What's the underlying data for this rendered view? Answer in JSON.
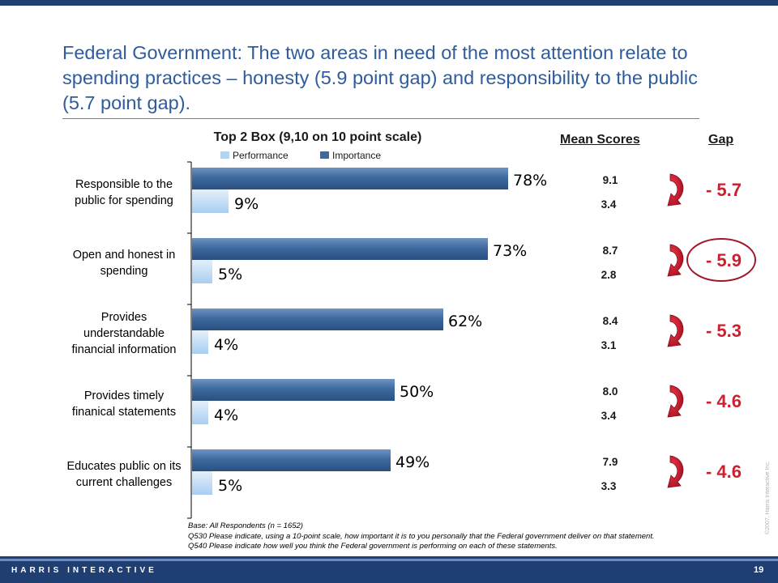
{
  "slide": {
    "title": "Federal Government: The two areas in need of the most attention relate to spending practices – honesty (5.9 point gap) and responsibility to the public (5.7 point gap).",
    "brand": "HARRIS INTERACTIVE",
    "page_number": "19",
    "side_note": "©2007, Harris Interactive Inc.",
    "footnotes": [
      "Base: All Respondents (n = 1652)",
      "Q530 Please indicate, using a 10-point scale, how important it is to you personally that the Federal government deliver on that statement.",
      "Q540 Please indicate how well you think the Federal government is performing on each of these statements."
    ],
    "mean_scores_header": "Mean Scores",
    "gap_header": "Gap"
  },
  "chart_data": {
    "type": "bar",
    "orientation": "horizontal",
    "title": "Top 2 Box (9,10 on 10 point scale)",
    "categories": [
      [
        "Responsible to the",
        "public for spending"
      ],
      [
        "Open and honest in",
        "spending"
      ],
      [
        "Provides",
        "understandable",
        "financial information"
      ],
      [
        "Provides timely",
        "finanical statements"
      ],
      [
        "Educates public on its",
        "current challenges"
      ]
    ],
    "series": [
      {
        "name": "Performance",
        "values": [
          9,
          5,
          4,
          4,
          5
        ],
        "labels": [
          "9%",
          "5%",
          "4%",
          "4%",
          "5%"
        ],
        "color": "#b3d4f2"
      },
      {
        "name": "Importance",
        "values": [
          78,
          73,
          62,
          50,
          49
        ],
        "labels": [
          "78%",
          "73%",
          "62%",
          "50%",
          "49%"
        ],
        "color": "#3d6a9e"
      }
    ],
    "xlim": [
      0,
      100
    ],
    "legend": "top",
    "mean_scores": [
      {
        "importance": "9.1",
        "performance": "3.4"
      },
      {
        "importance": "8.7",
        "performance": "2.8"
      },
      {
        "importance": "8.4",
        "performance": "3.1"
      },
      {
        "importance": "8.0",
        "performance": "3.4"
      },
      {
        "importance": "7.9",
        "performance": "3.3"
      }
    ],
    "gaps": [
      "- 5.7",
      "- 5.9",
      "- 5.3",
      "- 4.6",
      "- 4.6"
    ],
    "highlighted_gap_index": 1,
    "gap_color": "#cc1f2f",
    "arrow_color": "#c0102a"
  }
}
